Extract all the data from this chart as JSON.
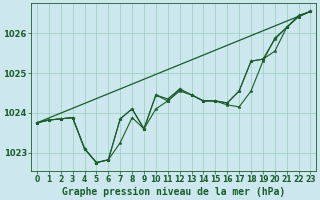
{
  "title": "Graphe pression niveau de la mer (hPa)",
  "bg_color": "#cce8ee",
  "plot_bg_color": "#cce8ee",
  "grid_color": "#99ccbb",
  "line_color": "#1a5c2a",
  "marker_color": "#1a5c2a",
  "xlim": [
    -0.5,
    23.5
  ],
  "ylim": [
    1022.55,
    1026.75
  ],
  "yticks": [
    1023,
    1024,
    1025,
    1026
  ],
  "xticks": [
    0,
    1,
    2,
    3,
    4,
    5,
    6,
    7,
    8,
    9,
    10,
    11,
    12,
    13,
    14,
    15,
    16,
    17,
    18,
    19,
    20,
    21,
    22,
    23
  ],
  "series": [
    [
      1023.75,
      1023.82,
      1023.85,
      1023.88,
      1023.1,
      1022.75,
      1022.82,
      1023.85,
      1024.1,
      1023.6,
      1024.45,
      1024.35,
      1024.6,
      1024.45,
      1024.3,
      1024.3,
      1024.25,
      1024.55,
      1025.3,
      1025.35,
      1025.85,
      1026.15,
      1026.45,
      1026.55
    ],
    [
      1023.75,
      1023.82,
      1023.85,
      1023.88,
      1023.1,
      1022.75,
      1022.82,
      1023.25,
      1023.88,
      1023.6,
      1024.45,
      1024.3,
      1024.6,
      1024.45,
      1024.3,
      1024.3,
      1024.2,
      1024.15,
      1024.55,
      1025.3,
      1025.88,
      1026.15,
      1026.42,
      1026.55
    ],
    [
      1023.75,
      1023.82,
      1023.85,
      1023.88,
      1023.1,
      1022.75,
      1022.82,
      1023.85,
      1024.1,
      1023.6,
      1024.1,
      1024.3,
      1024.55,
      1024.45,
      1024.3,
      1024.3,
      1024.25,
      1024.55,
      1025.3,
      1025.35,
      1025.55,
      1026.15,
      1026.42,
      1026.55
    ]
  ],
  "straight_line": [
    1023.75,
    1026.55
  ],
  "title_fontsize": 7,
  "tick_fontsize": 5.5,
  "title_color": "#1a5c2a",
  "title_fontweight": "bold"
}
